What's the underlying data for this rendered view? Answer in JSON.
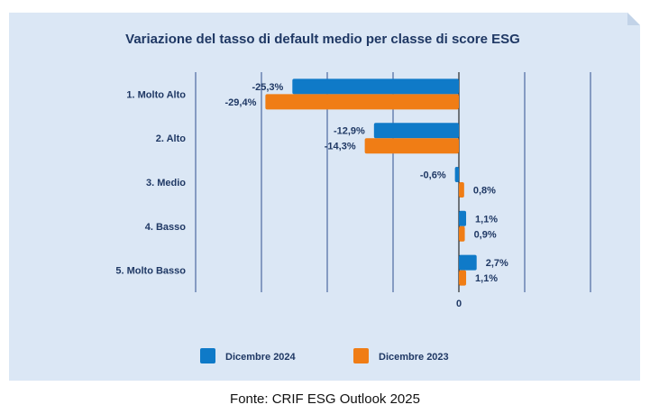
{
  "chart_data": {
    "type": "bar",
    "orientation": "horizontal",
    "title": "Variazione del tasso di default medio per classe di score ESG",
    "categories": [
      "1. Molto Alto",
      "2. Alto",
      "3. Medio",
      "4. Basso",
      "5. Molto Basso"
    ],
    "series": [
      {
        "name": "Dicembre 2024",
        "values": [
          -25.3,
          -12.9,
          -0.6,
          1.1,
          2.7
        ],
        "labels": [
          "-25,3%",
          "-12,9%",
          "-0,6%",
          "1,1%",
          "2,7%"
        ]
      },
      {
        "name": "Dicembre 2023",
        "values": [
          -29.4,
          -14.3,
          0.8,
          0.9,
          1.1
        ],
        "labels": [
          "-29,4%",
          "-14,3%",
          "0,8%",
          "0,9%",
          "1,1%"
        ]
      }
    ],
    "x_tick_labels": [
      "0"
    ],
    "xlim": [
      -40,
      20
    ],
    "grid": true,
    "legend_position": "bottom"
  },
  "colors": {
    "panel": "#dbe7f5",
    "title": "#1f3864",
    "text": "#1f3864",
    "grid": "#2f4f8f",
    "axis": "#000000",
    "series": [
      "#0f7ac8",
      "#f07d15"
    ]
  },
  "footer": {
    "source": "Fonte: CRIF ESG Outlook 2025"
  }
}
